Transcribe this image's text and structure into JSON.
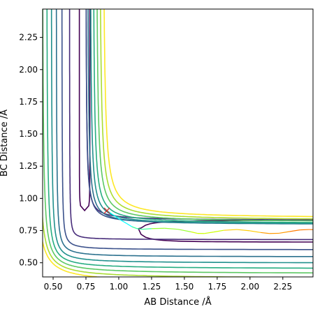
{
  "chart_data": {
    "type": "contour",
    "title": "",
    "xlabel": "AB Distance /Å",
    "ylabel": "BC Distance /Å",
    "xlim": [
      0.42,
      2.48
    ],
    "ylim": [
      0.39,
      2.47
    ],
    "xticks": [
      0.5,
      0.75,
      1.0,
      1.25,
      1.5,
      1.75,
      2.0,
      2.25
    ],
    "xtick_labels": [
      "0.50",
      "0.75",
      "1.00",
      "1.25",
      "1.50",
      "1.75",
      "2.00",
      "2.25"
    ],
    "yticks": [
      0.5,
      0.75,
      1.0,
      1.25,
      1.5,
      1.75,
      2.0,
      2.25
    ],
    "ytick_labels": [
      "0.50",
      "0.75",
      "1.00",
      "1.25",
      "1.50",
      "1.75",
      "2.00",
      "2.25"
    ],
    "grid": false,
    "legend": "none",
    "colormap": "viridis",
    "contour_levels": [
      {
        "rank": 0,
        "color": "#440154",
        "x0": 0.74,
        "y0": 0.845,
        "r": 0.06,
        "well_r": 0.04
      },
      {
        "rank": 1,
        "color": "#472c7a",
        "x0": 0.68,
        "y0": 0.735,
        "r": 0.09
      },
      {
        "rank": 2,
        "color": "#3b518b",
        "x0": 0.64,
        "y0": 0.675,
        "r": 0.12
      },
      {
        "rank": 3,
        "color": "#2c718e",
        "x0": 0.615,
        "y0": 0.638,
        "r": 0.15
      },
      {
        "rank": 4,
        "color": "#21908d",
        "x0": 0.595,
        "y0": 0.608,
        "r": 0.18
      },
      {
        "rank": 5,
        "color": "#27ad81",
        "x0": 0.578,
        "y0": 0.583,
        "r": 0.21
      },
      {
        "rank": 6,
        "color": "#5cc863",
        "x0": 0.563,
        "y0": 0.563,
        "r": 0.24
      },
      {
        "rank": 7,
        "color": "#aadc32",
        "x0": 0.548,
        "y0": 0.545,
        "r": 0.27
      },
      {
        "rank": 8,
        "color": "#fde725",
        "x0": 0.535,
        "y0": 0.53,
        "r": 0.3
      }
    ],
    "trajectory": {
      "colormap": "jet",
      "points": [
        [
          0.91,
          0.905
        ],
        [
          0.96,
          0.87
        ],
        [
          1.01,
          0.835
        ],
        [
          1.06,
          0.805
        ],
        [
          1.1,
          0.78
        ],
        [
          1.14,
          0.765
        ],
        [
          1.18,
          0.76
        ],
        [
          1.25,
          0.765
        ],
        [
          1.35,
          0.768
        ],
        [
          1.45,
          0.76
        ],
        [
          1.55,
          0.74
        ],
        [
          1.6,
          0.728
        ],
        [
          1.65,
          0.727
        ],
        [
          1.72,
          0.738
        ],
        [
          1.8,
          0.752
        ],
        [
          1.9,
          0.758
        ],
        [
          2.0,
          0.748
        ],
        [
          2.08,
          0.735
        ],
        [
          2.15,
          0.727
        ],
        [
          2.22,
          0.729
        ],
        [
          2.3,
          0.742
        ],
        [
          2.38,
          0.755
        ],
        [
          2.45,
          0.758
        ],
        [
          2.48,
          0.757
        ]
      ]
    },
    "marker": {
      "symbol": "x",
      "color": "#d62728",
      "x": 0.91,
      "y": 0.905
    }
  }
}
